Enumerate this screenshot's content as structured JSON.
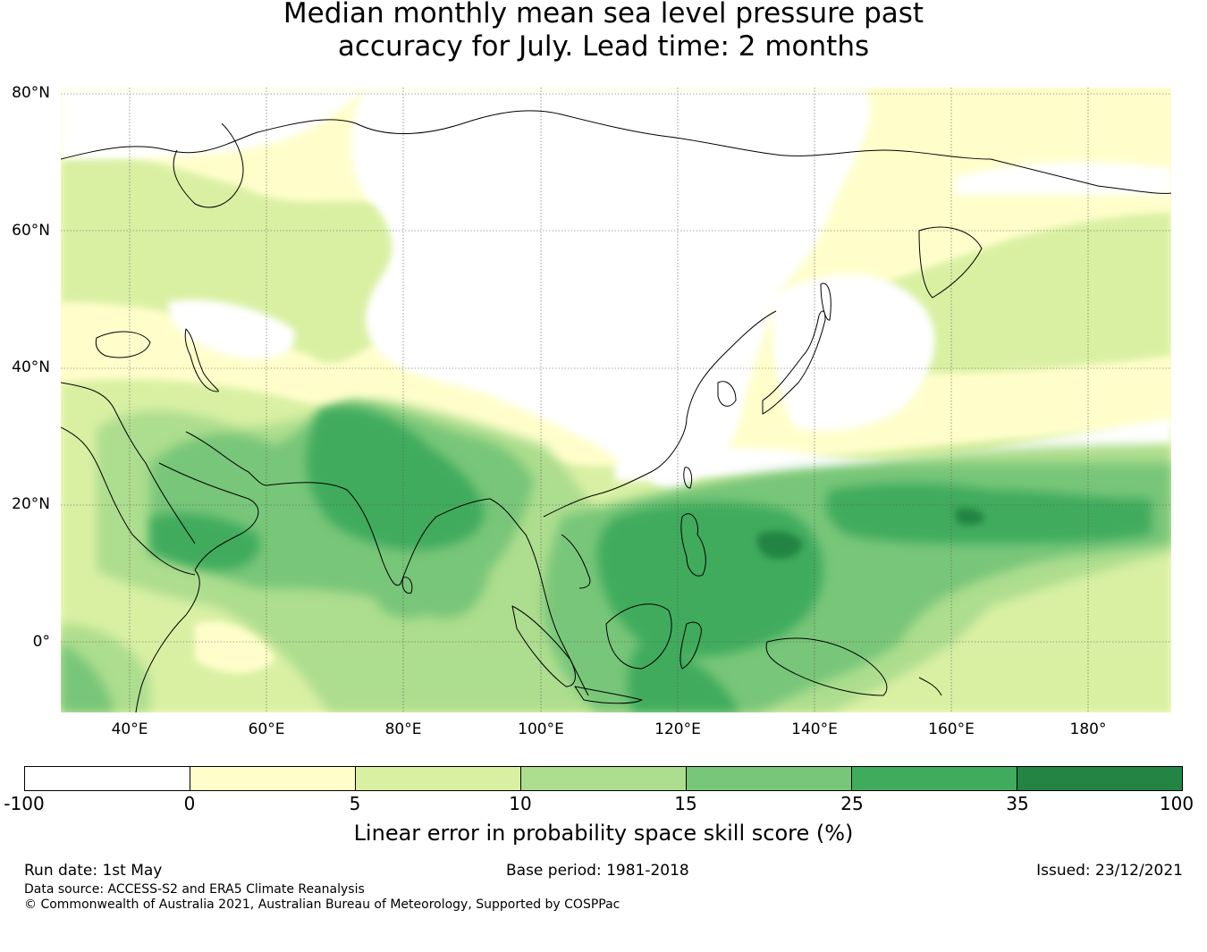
{
  "title": {
    "line1": "Median monthly mean sea level pressure past",
    "line2": "accuracy for July. Lead time: 2 months"
  },
  "map": {
    "lat_labels": [
      "80°N",
      "60°N",
      "40°N",
      "20°N",
      "0°"
    ],
    "lon_labels": [
      "40°E",
      "60°E",
      "80°E",
      "100°E",
      "120°E",
      "140°E",
      "160°E",
      "180°"
    ]
  },
  "colorbar": {
    "label": "Linear error in probability space skill score (%)",
    "ticks": [
      "-100",
      "0",
      "5",
      "10",
      "15",
      "25",
      "35",
      "100"
    ],
    "colors": [
      "#ffffff",
      "#fffecb",
      "#d9f0a3",
      "#addd8e",
      "#78c679",
      "#41ab5d",
      "#238443"
    ]
  },
  "footer": {
    "run_date": "Run date: 1st May",
    "base_period": "Base period: 1981-2018",
    "issued": "Issued: 23/12/2021",
    "data_source": "Data source: ACCESS-S2 and ERA5 Climate Reanalysis",
    "copyright": "© Commonwealth of Australia 2021, Australian Bureau of Meteorology, Supported by COSPPac"
  }
}
